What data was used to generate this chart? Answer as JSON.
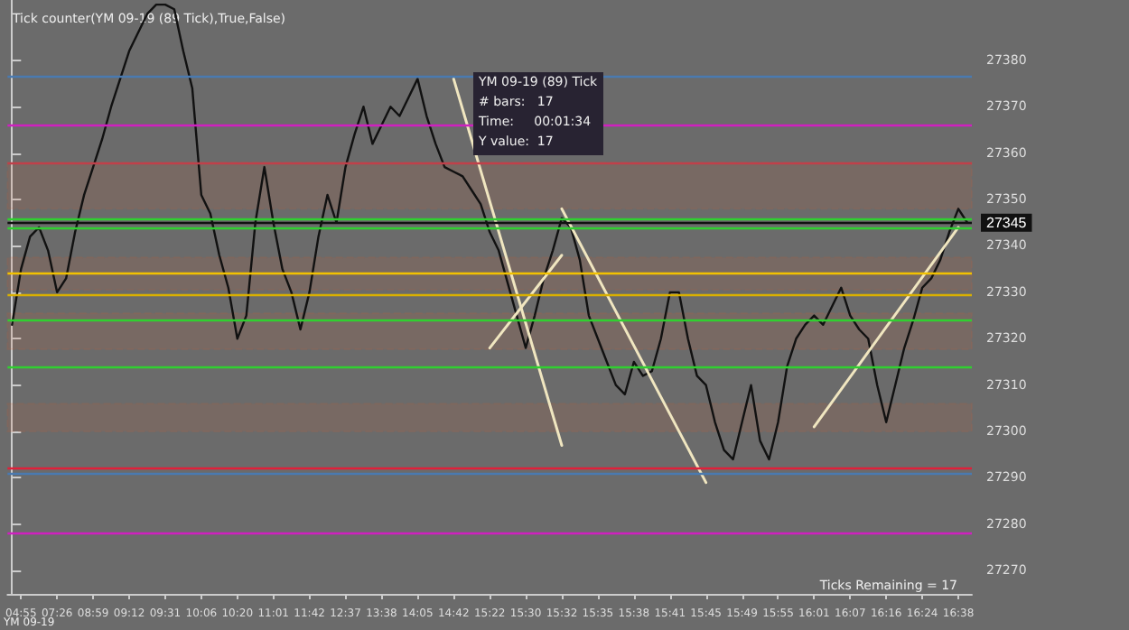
{
  "chart_data": {
    "type": "line",
    "title": "Tick counter(YM 09-19 (89 Tick),True,False)",
    "categories": [
      null,
      "04:55",
      null,
      null,
      null,
      "07:26",
      null,
      null,
      null,
      "08:59",
      null,
      null,
      null,
      "09:12",
      null,
      null,
      null,
      "09:31",
      null,
      null,
      null,
      "10:06",
      null,
      null,
      null,
      "10:20",
      null,
      null,
      null,
      "11:01",
      null,
      null,
      null,
      "11:42",
      null,
      null,
      null,
      "12:37",
      null,
      null,
      null,
      "13:38",
      null,
      null,
      null,
      "14:05",
      null,
      null,
      null,
      "14:42",
      null,
      null,
      null,
      "15:22",
      null,
      null,
      null,
      "15:30",
      null,
      null,
      null,
      "15:32",
      null,
      null,
      null,
      "15:35",
      null,
      null,
      null,
      "15:38",
      null,
      null,
      null,
      "15:41",
      null,
      null,
      null,
      "15:45",
      null,
      null,
      null,
      "15:49",
      null,
      null,
      null,
      "15:55",
      null,
      null,
      null,
      "16:01",
      null,
      null,
      null,
      "16:07",
      null,
      null,
      null,
      "16:16",
      null,
      null,
      null,
      "16:24",
      null,
      null,
      null,
      "16:38",
      null
    ],
    "series": [
      {
        "color": "#111111",
        "values": [
          27323,
          27335,
          27342,
          27344,
          27339,
          27330,
          27333,
          27343,
          27351,
          27357,
          27363,
          27370,
          27376,
          27382,
          27386,
          27390,
          27392,
          27392,
          27391,
          27382,
          27374,
          27351,
          27347,
          27338,
          27331,
          27320,
          27325,
          27345,
          27357,
          27345,
          27335,
          27330,
          27322,
          27330,
          27342,
          27351,
          27345,
          27357,
          27364,
          27370,
          27362,
          27366,
          27370,
          27368,
          27372,
          27376,
          27368,
          27362,
          27357,
          27356,
          27355,
          27352,
          27349,
          27343,
          27339,
          27332,
          27325,
          27318,
          27325,
          27333,
          27339,
          27346,
          27344,
          27337,
          27325,
          27320,
          27315,
          27310,
          27308,
          27315,
          27312,
          27313,
          27320,
          27330,
          27330,
          27320,
          27312,
          27310,
          27302,
          27296,
          27294,
          27302,
          27310,
          27298,
          27294,
          27302,
          27314,
          27320,
          27323,
          27325,
          27323,
          27327,
          27331,
          27325,
          27322,
          27320,
          27310,
          27302,
          27310,
          27318,
          27324,
          27331,
          27333,
          27337,
          27343,
          27348,
          27345
        ]
      },
      {
        "color": "#f0e6c0",
        "x": [
          "14:42",
          "15:32"
        ],
        "values": [
          27376,
          27297
        ]
      },
      {
        "color": "#f0e6c0",
        "x": [
          "15:32",
          "15:45"
        ],
        "values": [
          27348,
          27289
        ]
      },
      {
        "color": "#f0e6c0",
        "x": [
          "15:22",
          "15:32"
        ],
        "values": [
          27318,
          27338
        ]
      },
      {
        "color": "#f0e6c0",
        "x": [
          "16:01",
          "16:38"
        ],
        "values": [
          27301,
          27344
        ]
      }
    ],
    "ylim": [
      27265,
      27393
    ],
    "yticks": [
      27270,
      27280,
      27290,
      27300,
      27310,
      27320,
      27330,
      27340,
      27350,
      27360,
      27370,
      27380
    ],
    "grid": false,
    "marker": "none",
    "line_style": "solid",
    "ref_lines": [
      {
        "axis": "y",
        "value": 27345,
        "label": "27345",
        "color": "#111111"
      },
      {
        "axis": "y",
        "value": 27334,
        "color": "#f2c200"
      },
      {
        "axis": "y",
        "value": 27329.5,
        "color": "#d9b000"
      },
      {
        "axis": "y",
        "value": 27346,
        "color": "#30d030"
      },
      {
        "axis": "y",
        "value": 27314,
        "color": "#30d030"
      },
      {
        "axis": "y",
        "value": 27344,
        "color": "#30d030"
      },
      {
        "axis": "y",
        "value": 27324,
        "color": "#30d030"
      },
      {
        "axis": "y",
        "value": 27292,
        "color": "#e0203a"
      },
      {
        "axis": "y",
        "value": 27358,
        "color": "#c0404a"
      },
      {
        "axis": "y",
        "value": 27278,
        "color": "#d020c0"
      },
      {
        "axis": "y",
        "value": 27366,
        "color": "#d020c0"
      },
      {
        "axis": "y",
        "value": 27376.5,
        "color": "#4a7ab0"
      },
      {
        "axis": "y",
        "value": 27291,
        "color": "#4a7ab0"
      }
    ],
    "bands": [
      {
        "axis": "y",
        "from": 27348,
        "to": 27358,
        "color": "#d2572a"
      },
      {
        "axis": "y",
        "from": 27330.5,
        "to": 27337.5,
        "color": "#d2572a"
      },
      {
        "axis": "y",
        "from": 27317.7,
        "to": 27325.5,
        "color": "#d2572a"
      },
      {
        "axis": "y",
        "from": 27300,
        "to": 27306,
        "color": "#d2572a"
      }
    ],
    "annotations": [
      "YM 09-19 (89) Tick",
      "# bars:   17",
      "Time:     00:01:34",
      "Y value:  17",
      "Ticks Remaining = 17",
      "YM 09-19"
    ]
  }
}
